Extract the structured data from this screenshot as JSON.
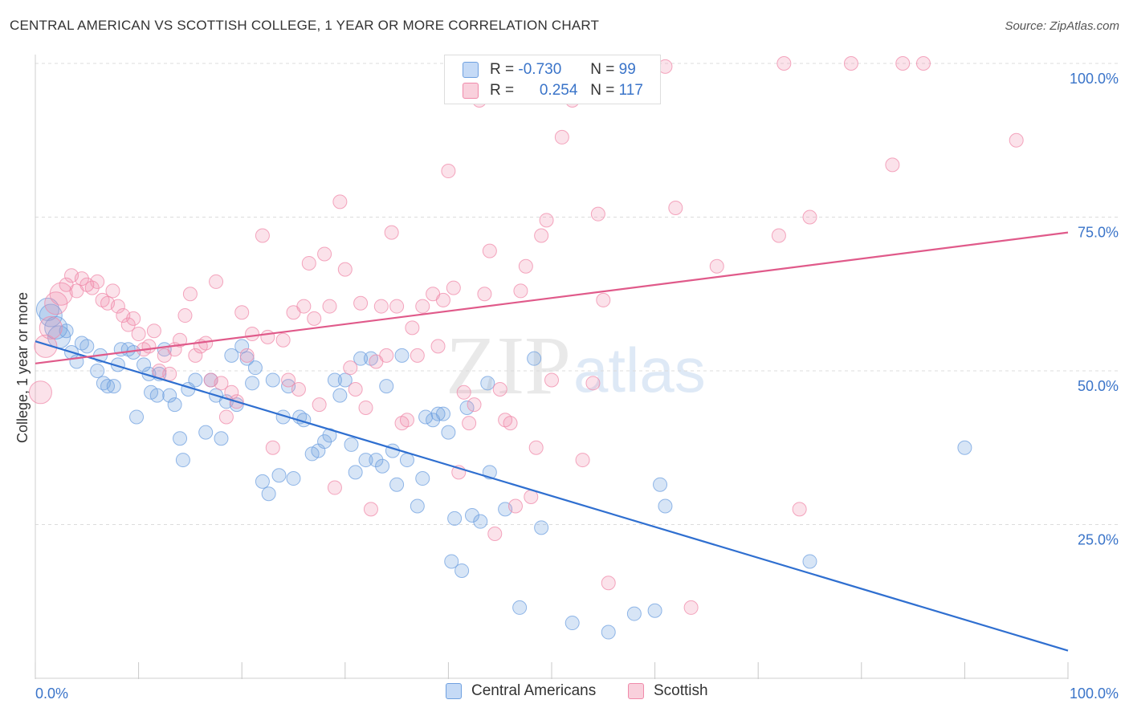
{
  "title": "CENTRAL AMERICAN VS SCOTTISH COLLEGE, 1 YEAR OR MORE CORRELATION CHART",
  "source": "Source: ZipAtlas.com",
  "watermark": {
    "zip": "ZIP",
    "atlas": "atlas"
  },
  "legend": {
    "r_label": "R =",
    "n_label": "N =",
    "rows": [
      {
        "r": "-0.730",
        "n": "99",
        "color": "#6fa0e0"
      },
      {
        "r": "0.254",
        "n": "117",
        "color": "#f08aaa"
      }
    ]
  },
  "bottom_legend": [
    "Central Americans",
    "Scottish"
  ],
  "chart_data": {
    "type": "scatter",
    "ylabel": "College, 1 year or more",
    "xlim": [
      0,
      100
    ],
    "ylim": [
      0,
      100
    ],
    "x_tick_labels": [
      "0.0%",
      "100.0%"
    ],
    "y_tick_labels": [
      "25.0%",
      "50.0%",
      "75.0%",
      "100.0%"
    ],
    "y_ticks": [
      25,
      50,
      75,
      100
    ],
    "grid": "horizontal dashed",
    "series": [
      {
        "name": "Central Americans",
        "color": "#6fa0e0",
        "trend": {
          "x": [
            0,
            100
          ],
          "y": [
            54.8,
            4.5
          ]
        },
        "points": [
          [
            1.2,
            60
          ],
          [
            1.5,
            59
          ],
          [
            2,
            57
          ],
          [
            2.3,
            55.5
          ],
          [
            3,
            56.5
          ],
          [
            3.5,
            53
          ],
          [
            4,
            51.5
          ],
          [
            4.5,
            54.5
          ],
          [
            5,
            54
          ],
          [
            6,
            50
          ],
          [
            6.3,
            52.5
          ],
          [
            6.6,
            48
          ],
          [
            7,
            47.5
          ],
          [
            7.6,
            47.5
          ],
          [
            8,
            51
          ],
          [
            8.3,
            53.5
          ],
          [
            9,
            53.5
          ],
          [
            9.5,
            53
          ],
          [
            9.8,
            42.5
          ],
          [
            10.5,
            51
          ],
          [
            11,
            49.5
          ],
          [
            11.2,
            46.5
          ],
          [
            11.8,
            46
          ],
          [
            12,
            49.5
          ],
          [
            12.5,
            53.5
          ],
          [
            13,
            46
          ],
          [
            13.5,
            44.5
          ],
          [
            14,
            39
          ],
          [
            14.3,
            35.5
          ],
          [
            14.8,
            47
          ],
          [
            15.5,
            48.5
          ],
          [
            16.5,
            40
          ],
          [
            17,
            48.5
          ],
          [
            17.5,
            46
          ],
          [
            18,
            39
          ],
          [
            18.5,
            45
          ],
          [
            19,
            52.5
          ],
          [
            19.5,
            44.5
          ],
          [
            20,
            54
          ],
          [
            20.5,
            52
          ],
          [
            21,
            48
          ],
          [
            21.3,
            50.5
          ],
          [
            22,
            32
          ],
          [
            22.6,
            30
          ],
          [
            23,
            48.5
          ],
          [
            23.6,
            33
          ],
          [
            24,
            42.5
          ],
          [
            24.5,
            47.5
          ],
          [
            25,
            32.5
          ],
          [
            25.6,
            42.5
          ],
          [
            26,
            42
          ],
          [
            26.8,
            36.5
          ],
          [
            27.4,
            37
          ],
          [
            28,
            38.5
          ],
          [
            28.5,
            39.5
          ],
          [
            29,
            48.5
          ],
          [
            29.5,
            46
          ],
          [
            30,
            48.5
          ],
          [
            30.6,
            38
          ],
          [
            31,
            33.5
          ],
          [
            31.5,
            52
          ],
          [
            32,
            35.5
          ],
          [
            32.5,
            52
          ],
          [
            33,
            35.5
          ],
          [
            33.6,
            34.5
          ],
          [
            34,
            47.5
          ],
          [
            34.6,
            37
          ],
          [
            35,
            31.5
          ],
          [
            35.5,
            52.5
          ],
          [
            36,
            35.5
          ],
          [
            37,
            28
          ],
          [
            37.5,
            32.5
          ],
          [
            37.8,
            42.5
          ],
          [
            38.5,
            42
          ],
          [
            39,
            43
          ],
          [
            39.5,
            43
          ],
          [
            40,
            40
          ],
          [
            40.6,
            26
          ],
          [
            40.3,
            19
          ],
          [
            41.3,
            17.5
          ],
          [
            41.8,
            44
          ],
          [
            42.3,
            26.5
          ],
          [
            43.1,
            25.5
          ],
          [
            43.8,
            48
          ],
          [
            44,
            33.5
          ],
          [
            45.5,
            27.5
          ],
          [
            46.9,
            11.5
          ],
          [
            48.3,
            52
          ],
          [
            49,
            24.5
          ],
          [
            52,
            9
          ],
          [
            55.5,
            7.5
          ],
          [
            58,
            10.5
          ],
          [
            60,
            11
          ],
          [
            60.5,
            31.5
          ],
          [
            61,
            28
          ],
          [
            75,
            19
          ],
          [
            90,
            37.5
          ]
        ]
      },
      {
        "name": "Scottish",
        "color": "#f08aaa",
        "trend": {
          "x": [
            0,
            100
          ],
          "y": [
            51.2,
            72.5
          ]
        },
        "points": [
          [
            0.5,
            46.5
          ],
          [
            1,
            54
          ],
          [
            1.5,
            57
          ],
          [
            2,
            61
          ],
          [
            2.5,
            62.5
          ],
          [
            3,
            64
          ],
          [
            3.5,
            65.5
          ],
          [
            4,
            63
          ],
          [
            4.5,
            65
          ],
          [
            5,
            64
          ],
          [
            5.5,
            63.5
          ],
          [
            6,
            64.5
          ],
          [
            6.5,
            61.5
          ],
          [
            7,
            61
          ],
          [
            7.5,
            63
          ],
          [
            8,
            60.5
          ],
          [
            8.5,
            59
          ],
          [
            9,
            57.5
          ],
          [
            9.5,
            58.5
          ],
          [
            10,
            56
          ],
          [
            10.5,
            53.5
          ],
          [
            11,
            54
          ],
          [
            11.5,
            56.5
          ],
          [
            12,
            50
          ],
          [
            12.5,
            52.5
          ],
          [
            13,
            49.5
          ],
          [
            13.5,
            53.5
          ],
          [
            14,
            55
          ],
          [
            14.5,
            59
          ],
          [
            15,
            62.5
          ],
          [
            15.5,
            52.5
          ],
          [
            16,
            54
          ],
          [
            16.5,
            54.5
          ],
          [
            17,
            48.5
          ],
          [
            17.5,
            64.5
          ],
          [
            18,
            48
          ],
          [
            18.5,
            42.5
          ],
          [
            19,
            46.5
          ],
          [
            19.5,
            45
          ],
          [
            20,
            59.5
          ],
          [
            20.5,
            52.5
          ],
          [
            21,
            56
          ],
          [
            22,
            72
          ],
          [
            22.5,
            55.5
          ],
          [
            23,
            37.5
          ],
          [
            24,
            55
          ],
          [
            24.5,
            48.5
          ],
          [
            25,
            59.5
          ],
          [
            25.5,
            47
          ],
          [
            26,
            60.5
          ],
          [
            26.5,
            67.5
          ],
          [
            27,
            58.5
          ],
          [
            27.5,
            44.5
          ],
          [
            28,
            69
          ],
          [
            28.5,
            60.5
          ],
          [
            29,
            31
          ],
          [
            29.5,
            77.5
          ],
          [
            30,
            66.5
          ],
          [
            30.5,
            50.5
          ],
          [
            31,
            47
          ],
          [
            31.5,
            61
          ],
          [
            32,
            44
          ],
          [
            32.5,
            27.5
          ],
          [
            33,
            51.5
          ],
          [
            33.5,
            60.5
          ],
          [
            34,
            52.5
          ],
          [
            34.5,
            72.5
          ],
          [
            35,
            60.5
          ],
          [
            35.5,
            41.5
          ],
          [
            36,
            42
          ],
          [
            36.5,
            57
          ],
          [
            37,
            52.5
          ],
          [
            37.5,
            60.5
          ],
          [
            38.5,
            62.5
          ],
          [
            39,
            54
          ],
          [
            39.5,
            61.5
          ],
          [
            40,
            82.5
          ],
          [
            40.5,
            63.5
          ],
          [
            41,
            33.5
          ],
          [
            41.5,
            46.5
          ],
          [
            42,
            41.5
          ],
          [
            42.5,
            44.5
          ],
          [
            43,
            94
          ],
          [
            43.5,
            62.5
          ],
          [
            44,
            69.5
          ],
          [
            44.5,
            23.5
          ],
          [
            45,
            47
          ],
          [
            45.5,
            42
          ],
          [
            46,
            41.5
          ],
          [
            46.5,
            28
          ],
          [
            47,
            63
          ],
          [
            47.5,
            67
          ],
          [
            48,
            29.5
          ],
          [
            48.5,
            37.5
          ],
          [
            49,
            72
          ],
          [
            49.5,
            74.5
          ],
          [
            50,
            48.5
          ],
          [
            51,
            88
          ],
          [
            52,
            94
          ],
          [
            53,
            35.5
          ],
          [
            54,
            48
          ],
          [
            54.5,
            75.5
          ],
          [
            55,
            61.5
          ],
          [
            55.5,
            15.5
          ],
          [
            57,
            99.5
          ],
          [
            57.5,
            100
          ],
          [
            61,
            99.5
          ],
          [
            62,
            76.5
          ],
          [
            63.5,
            11.5
          ],
          [
            66,
            67
          ],
          [
            72,
            72
          ],
          [
            72.5,
            100
          ],
          [
            74,
            27.5
          ],
          [
            75,
            75
          ],
          [
            79,
            100
          ],
          [
            83,
            83.5
          ],
          [
            84,
            100
          ],
          [
            86,
            100
          ],
          [
            95,
            87.5
          ]
        ]
      }
    ]
  }
}
